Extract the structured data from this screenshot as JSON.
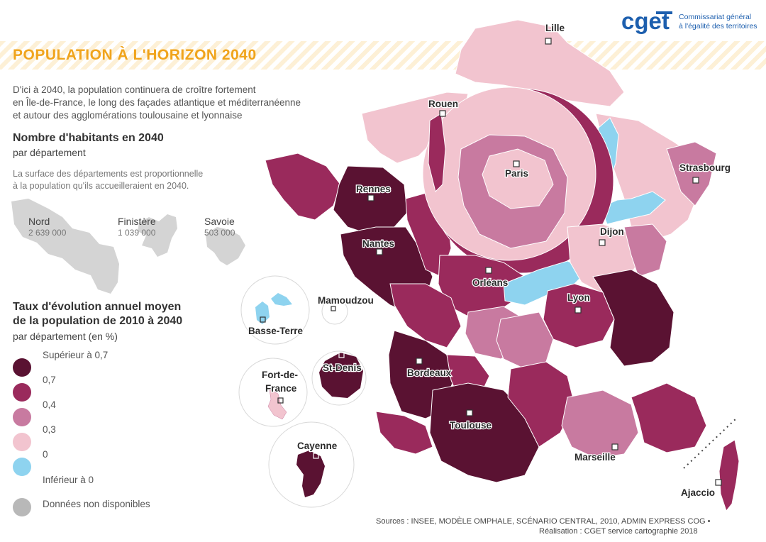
{
  "header": {
    "title": "POPULATION À L'HORIZON 2040",
    "intro_lines": [
      "D'ici à 2040, la population continuera de croître fortement",
      "en Île-de-France, le long des façades atlantique et méditerranéenne",
      "et autour des agglomérations toulousaine et lyonnaise"
    ]
  },
  "logo": {
    "wordmark": "cget",
    "line1": "Commissariat général",
    "line2": "à l'égalité des territoires"
  },
  "size_legend": {
    "title": "Nombre d'habitants en 2040",
    "subtitle": "par département",
    "note_lines": [
      "La surface des départements est proportionnelle",
      "à la population qu'ils accueilleraient en 2040."
    ],
    "samples": [
      {
        "name": "Nord",
        "value": "2 639 000"
      },
      {
        "name": "Finistère",
        "value": "1 039 000"
      },
      {
        "name": "Savoie",
        "value": "503 000"
      }
    ]
  },
  "color_legend": {
    "title_line1": "Taux d'évolution annuel moyen",
    "title_line2": "de la population de 2010 à 2040",
    "subtitle": "par département (en %)",
    "classes": [
      {
        "label": "Supérieur à 0,7",
        "color": "#5a1232"
      },
      {
        "label": "0,7",
        "color": "#9a2a5c"
      },
      {
        "label": "0,4",
        "color": "#c87aa0"
      },
      {
        "label": "0,3",
        "color": "#f2c4cf"
      },
      {
        "label": "0",
        "color": "#8ed3ef"
      },
      {
        "label": "Inférieur à 0",
        "color": "#c2c2c2"
      },
      {
        "label": "Données non disponibles",
        "color": "#b8b8b8"
      }
    ]
  },
  "cities": {
    "lille": "Lille",
    "rouen": "Rouen",
    "paris": "Paris",
    "strasbourg": "Strasbourg",
    "rennes": "Rennes",
    "dijon": "Dijon",
    "nantes": "Nantes",
    "orleans": "Orléans",
    "lyon": "Lyon",
    "bordeaux": "Bordeaux",
    "toulouse": "Toulouse",
    "marseille": "Marseille",
    "ajaccio": "Ajaccio"
  },
  "overseas": {
    "mamoudzou": "Mamoudzou",
    "basse_terre": "Basse-Terre",
    "st_denis": "St-Denis",
    "fort_de_france_1": "Fort-de-",
    "fort_de_france_2": "France",
    "cayenne": "Cayenne"
  },
  "footer": {
    "sources": "Sources : INSEE, MODÈLE OMPHALE, SCÉNARIO CENTRAL, 2010, ADMIN EXPRESS COG •",
    "credit": "Réalisation : CGET service cartographie 2018"
  }
}
